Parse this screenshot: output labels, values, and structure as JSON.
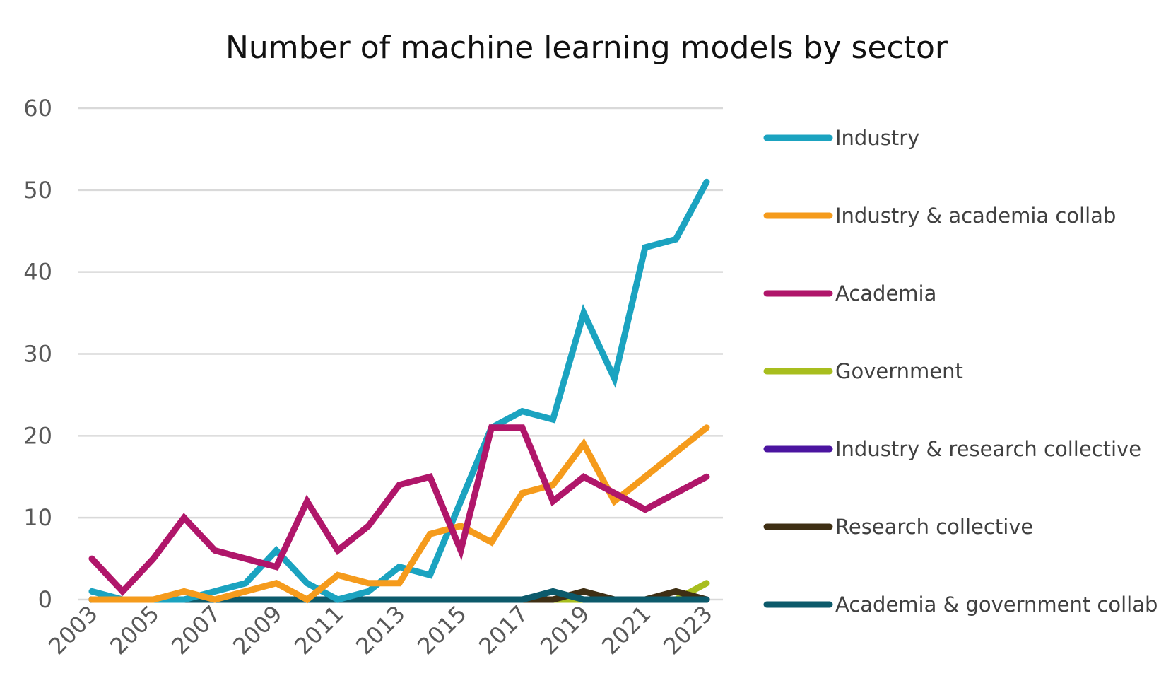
{
  "chart_data": {
    "type": "line",
    "title": "Number of machine learning models by sector",
    "xlabel": "",
    "ylabel": "",
    "x": [
      2003,
      2004,
      2005,
      2006,
      2007,
      2008,
      2009,
      2010,
      2011,
      2012,
      2013,
      2014,
      2015,
      2016,
      2017,
      2018,
      2019,
      2020,
      2021,
      2022,
      2023
    ],
    "x_tick_labels": [
      "2003",
      "2005",
      "2007",
      "2009",
      "2011",
      "2013",
      "2015",
      "2017",
      "2019",
      "2021",
      "2023"
    ],
    "ylim": [
      0,
      60
    ],
    "y_ticks": [
      0,
      10,
      20,
      30,
      40,
      50,
      60
    ],
    "grid": true,
    "legend_position": "right",
    "series": [
      {
        "name": "Industry",
        "color": "#1ba3c0",
        "values": [
          1,
          0,
          0,
          0,
          1,
          2,
          6,
          2,
          0,
          1,
          4,
          3,
          12,
          21,
          23,
          22,
          35,
          27,
          43,
          44,
          51
        ]
      },
      {
        "name": "Industry & academia collab",
        "color": "#f59b1c",
        "values": [
          0,
          0,
          0,
          1,
          0,
          1,
          2,
          0,
          3,
          2,
          2,
          8,
          9,
          7,
          13,
          14,
          19,
          12,
          15,
          18,
          21
        ]
      },
      {
        "name": "Academia",
        "color": "#b0166a",
        "values": [
          5,
          1,
          5,
          10,
          6,
          5,
          4,
          12,
          6,
          9,
          14,
          15,
          6,
          21,
          21,
          12,
          15,
          13,
          11,
          13,
          15
        ]
      },
      {
        "name": "Government",
        "color": "#a8be1e",
        "values": [
          0,
          0,
          0,
          0,
          0,
          0,
          0,
          0,
          0,
          0,
          0,
          0,
          0,
          0,
          0,
          0,
          0,
          0,
          0,
          0,
          2
        ]
      },
      {
        "name": "Industry & research collective",
        "color": "#4b14a0",
        "values": [
          0,
          0,
          0,
          0,
          0,
          0,
          0,
          0,
          0,
          0,
          0,
          0,
          0,
          0,
          0,
          0,
          0,
          0,
          0,
          0,
          0
        ]
      },
      {
        "name": "Research collective",
        "color": "#3f2f14",
        "values": [
          0,
          0,
          0,
          0,
          0,
          0,
          0,
          0,
          0,
          0,
          0,
          0,
          0,
          0,
          0,
          0,
          1,
          0,
          0,
          1,
          0
        ]
      },
      {
        "name": "Academia & government collab",
        "color": "#0c5a6b",
        "values": [
          0,
          0,
          0,
          0,
          0,
          0,
          0,
          0,
          0,
          0,
          0,
          0,
          0,
          0,
          0,
          1,
          0,
          0,
          0,
          0,
          0
        ]
      }
    ]
  }
}
